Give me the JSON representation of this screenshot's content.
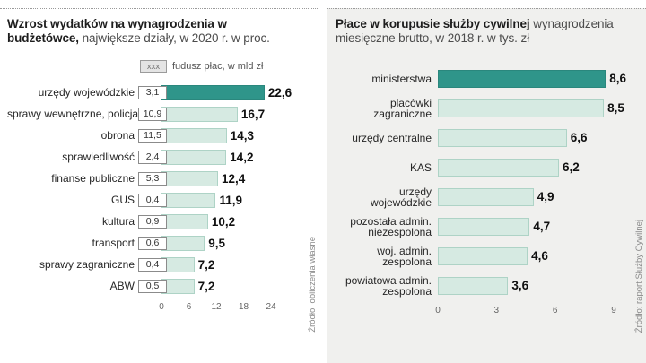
{
  "colors": {
    "accent_teal": "#2f958a",
    "bar_fill": "#d6eae2",
    "bar_border": "#aed3c6",
    "right_panel_bg": "#f0f0ee"
  },
  "chart_data": [
    {
      "type": "bar",
      "title_bold": "Wzrost wydatków na wynagrodzenia w budżetówce,",
      "title_rest": "największe działy, w 2020 r. w proc.",
      "legend_box": "xxx",
      "legend_text": "fudusz płac, w mld zł",
      "source": "Źródło: obliczenia własne",
      "xlim": [
        0,
        24
      ],
      "xticks": [
        "0",
        "6",
        "12",
        "18",
        "24"
      ],
      "categories": [
        "urzędy wojewódzkie",
        "sprawy wewnętrzne, policja",
        "obrona",
        "sprawiedliwość",
        "finanse publiczne",
        "GUS",
        "kultura",
        "transport",
        "sprawy zagraniczne",
        "ABW"
      ],
      "values": [
        22.6,
        16.7,
        14.3,
        14.2,
        12.4,
        11.9,
        10.2,
        9.5,
        7.2,
        7.2
      ],
      "value_labels": [
        "22,6",
        "16,7",
        "14,3",
        "14,2",
        "12,4",
        "11,9",
        "10,2",
        "9,5",
        "7,2",
        "7,2"
      ],
      "fund_values": [
        3.1,
        10.9,
        11.5,
        2.4,
        5.3,
        0.4,
        0.9,
        0.6,
        0.4,
        0.5
      ],
      "fund_labels": [
        "3,1",
        "10,9",
        "11,5",
        "2,4",
        "5,3",
        "0,4",
        "0,9",
        "0,6",
        "0,4",
        "0,5"
      ]
    },
    {
      "type": "bar",
      "title_bold": "Płace w korupusie służby cywilnej",
      "title_rest": "wynagrodzenia miesięczne brutto, w 2018 r. w tys. zł",
      "source": "Źródło: raport Służby Cywilnej",
      "xlim": [
        0,
        9
      ],
      "xticks": [
        "0",
        "3",
        "6",
        "9"
      ],
      "categories": [
        "ministerstwa",
        "placówki zagraniczne",
        "urzędy centralne",
        "KAS",
        "urzędy wojewódzkie",
        "pozostała admin. niezespolona",
        "woj. admin. zespolona",
        "powiatowa admin. zespolona"
      ],
      "values": [
        8.6,
        8.5,
        6.6,
        6.2,
        4.9,
        4.7,
        4.6,
        3.6
      ],
      "value_labels": [
        "8,6",
        "8,5",
        "6,6",
        "6,2",
        "4,9",
        "4,7",
        "4,6",
        "3,6"
      ]
    }
  ]
}
